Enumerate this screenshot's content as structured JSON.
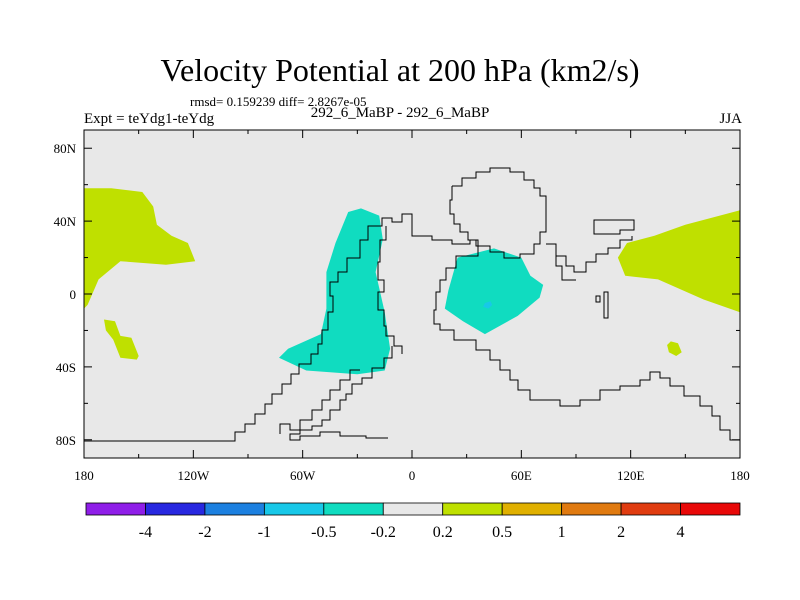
{
  "header": {
    "title": "Velocity Potential at 200 hPa (km2/s)",
    "stats": "rmsd= 0.159239 diff= 2.8267e-05",
    "experiment": "Expt = teYdg1-teYdg",
    "cases": "292_6_MaBP - 292_6_MaBP",
    "season": "JJA"
  },
  "colors": {
    "background_field": "#e8e8e8",
    "positive_low": "#bfe000",
    "negative_low": "#10dcc0",
    "negative_mid": "#18c8e8",
    "coast": "#000000"
  },
  "chart_data": {
    "type": "contour-map",
    "title": "Velocity Potential at 200 hPa (km2/s)",
    "x_axis": {
      "range": [
        -180,
        180
      ],
      "ticks": [
        -180,
        -120,
        -60,
        0,
        60,
        120,
        180
      ],
      "tick_labels": [
        "180",
        "120W",
        "60W",
        "0",
        "60E",
        "120E",
        "180"
      ]
    },
    "y_axis": {
      "range": [
        -90,
        90
      ],
      "ticks": [
        80,
        40,
        0,
        -40,
        -80
      ],
      "tick_labels": [
        "80N",
        "40N",
        "0",
        "40S",
        "80S"
      ]
    },
    "colorbar": {
      "levels": [
        "-4",
        "-2",
        "-1",
        "-0.5",
        "-0.2",
        "0.2",
        "0.5",
        "1",
        "2",
        "4"
      ],
      "colors": [
        "#8f1ee8",
        "#2828e0",
        "#1c80e0",
        "#18c8e8",
        "#10dcc0",
        "#e8e8e8",
        "#bfe000",
        "#e0b000",
        "#e07a10",
        "#e03c10",
        "#e80808"
      ]
    },
    "regions": [
      {
        "name": "positive_pacific_north",
        "interval": "0.2 to 0.5",
        "lonlat": [
          [
            -180,
            58
          ],
          [
            -165,
            58
          ],
          [
            -148,
            56
          ],
          [
            -142,
            48
          ],
          [
            -140,
            38
          ],
          [
            -132,
            32
          ],
          [
            -123,
            28
          ],
          [
            -119,
            18
          ],
          [
            -135,
            16
          ],
          [
            -160,
            18
          ],
          [
            -172,
            8
          ],
          [
            -178,
            -6
          ],
          [
            -180,
            -8
          ]
        ]
      },
      {
        "name": "positive_pacific_south",
        "interval": "0.2 to 0.5",
        "lonlat": [
          [
            -169,
            -14
          ],
          [
            -163,
            -15
          ],
          [
            -160,
            -23
          ],
          [
            -154,
            -24
          ],
          [
            -150,
            -34
          ],
          [
            -151,
            -36
          ],
          [
            -160,
            -35
          ],
          [
            -164,
            -25
          ],
          [
            -168,
            -20
          ]
        ]
      },
      {
        "name": "positive_asia_pacific",
        "interval": "0.2 to 0.5",
        "lonlat": [
          [
            180,
            46
          ],
          [
            165,
            42
          ],
          [
            150,
            38
          ],
          [
            133,
            32
          ],
          [
            118,
            28
          ],
          [
            113,
            20
          ],
          [
            117,
            10
          ],
          [
            135,
            8
          ],
          [
            160,
            -3
          ],
          [
            180,
            -10
          ]
        ]
      },
      {
        "name": "positive_small_south_pacific",
        "interval": "0.2 to 0.5",
        "lonlat": [
          [
            142,
            -26
          ],
          [
            146,
            -27
          ],
          [
            148,
            -32
          ],
          [
            145,
            -34
          ],
          [
            141,
            -32
          ],
          [
            140,
            -28
          ]
        ]
      },
      {
        "name": "negative_south_america_atlantic",
        "interval": "-0.5 to -0.2",
        "lonlat": [
          [
            -35,
            45
          ],
          [
            -28,
            47
          ],
          [
            -18,
            43
          ],
          [
            -16,
            30
          ],
          [
            -20,
            12
          ],
          [
            -15,
            -10
          ],
          [
            -12,
            -30
          ],
          [
            -15,
            -42
          ],
          [
            -30,
            -44
          ],
          [
            -58,
            -42
          ],
          [
            -73,
            -35
          ],
          [
            -68,
            -30
          ],
          [
            -50,
            -22
          ],
          [
            -47,
            -8
          ],
          [
            -47,
            12
          ],
          [
            -42,
            28
          ]
        ]
      },
      {
        "name": "negative_africa_indian",
        "interval": "-0.5 to -0.2",
        "lonlat": [
          [
            25,
            20
          ],
          [
            45,
            25
          ],
          [
            60,
            20
          ],
          [
            65,
            10
          ],
          [
            72,
            5
          ],
          [
            70,
            -2
          ],
          [
            58,
            -12
          ],
          [
            40,
            -22
          ],
          [
            28,
            -15
          ],
          [
            18,
            -8
          ],
          [
            20,
            2
          ]
        ]
      },
      {
        "name": "negative_core_indian",
        "interval": "-1 to -0.5",
        "lonlat": [
          [
            40,
            -5
          ],
          [
            43,
            -4
          ],
          [
            44,
            -6
          ],
          [
            42,
            -8
          ],
          [
            39,
            -7
          ]
        ]
      }
    ]
  }
}
